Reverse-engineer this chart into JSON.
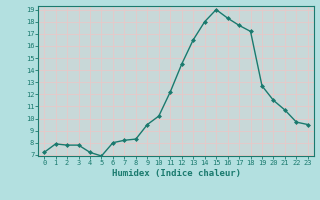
{
  "x": [
    0,
    1,
    2,
    3,
    4,
    5,
    6,
    7,
    8,
    9,
    10,
    11,
    12,
    13,
    14,
    15,
    16,
    17,
    18,
    19,
    20,
    21,
    22,
    23
  ],
  "y": [
    7.2,
    7.9,
    7.8,
    7.8,
    7.2,
    6.9,
    8.0,
    8.2,
    8.3,
    9.5,
    10.2,
    12.2,
    14.5,
    16.5,
    18.0,
    19.0,
    18.3,
    17.7,
    17.2,
    12.7,
    11.5,
    10.7,
    9.7,
    9.5
  ],
  "xlabel": "Humidex (Indice chaleur)",
  "ylim": [
    7,
    19
  ],
  "xlim": [
    -0.5,
    23.5
  ],
  "line_color": "#1a7a6e",
  "marker_color": "#1a7a6e",
  "bg_color": "#b3e0e0",
  "plot_bg_color": "#c8d8d8",
  "grid_color": "#e8c8c8",
  "tick_label_color": "#1a7a6e",
  "xlabel_color": "#1a7a6e",
  "yticks": [
    7,
    8,
    9,
    10,
    11,
    12,
    13,
    14,
    15,
    16,
    17,
    18,
    19
  ],
  "xticks": [
    0,
    1,
    2,
    3,
    4,
    5,
    6,
    7,
    8,
    9,
    10,
    11,
    12,
    13,
    14,
    15,
    16,
    17,
    18,
    19,
    20,
    21,
    22,
    23
  ]
}
